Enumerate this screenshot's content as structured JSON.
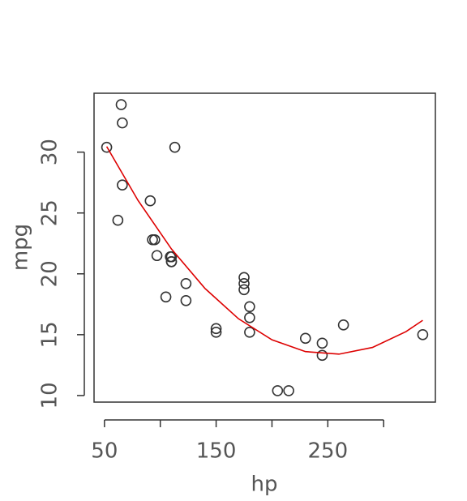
{
  "chart_data": {
    "type": "scatter",
    "xlabel": "hp",
    "ylabel": "mpg",
    "x": [
      110,
      110,
      93,
      110,
      175,
      105,
      245,
      62,
      95,
      123,
      123,
      180,
      180,
      180,
      205,
      215,
      230,
      66,
      52,
      65,
      97,
      150,
      150,
      245,
      175,
      66,
      91,
      113,
      264,
      175,
      335,
      109
    ],
    "values": [
      21,
      21,
      22.8,
      21.4,
      18.7,
      18.1,
      14.3,
      24.4,
      22.8,
      19.2,
      17.8,
      16.4,
      17.3,
      15.2,
      10.4,
      10.4,
      14.7,
      32.4,
      30.4,
      33.9,
      21.5,
      15.5,
      15.2,
      13.3,
      19.2,
      27.3,
      26,
      30.4,
      15.8,
      19.7,
      15,
      21.4
    ],
    "color": "#333333",
    "fit": {
      "type": "line",
      "color": "#dd0000",
      "x": [
        52,
        80,
        110,
        140,
        170,
        200,
        230,
        260,
        290,
        320,
        335
      ],
      "values": [
        30.46,
        26.04,
        22.04,
        18.8,
        16.31,
        14.58,
        13.61,
        13.4,
        13.95,
        15.25,
        16.18
      ]
    },
    "xlim": [
      40.68,
      346.32
    ],
    "xticks": [
      50,
      {
        "value": 100,
        "label": null
      },
      150,
      {
        "value": 200,
        "label": null
      },
      250,
      {
        "value": 300,
        "label": null
      }
    ],
    "ylim": [
      9.46,
      34.84
    ],
    "yticks": [
      10,
      15,
      20,
      25,
      30
    ]
  }
}
